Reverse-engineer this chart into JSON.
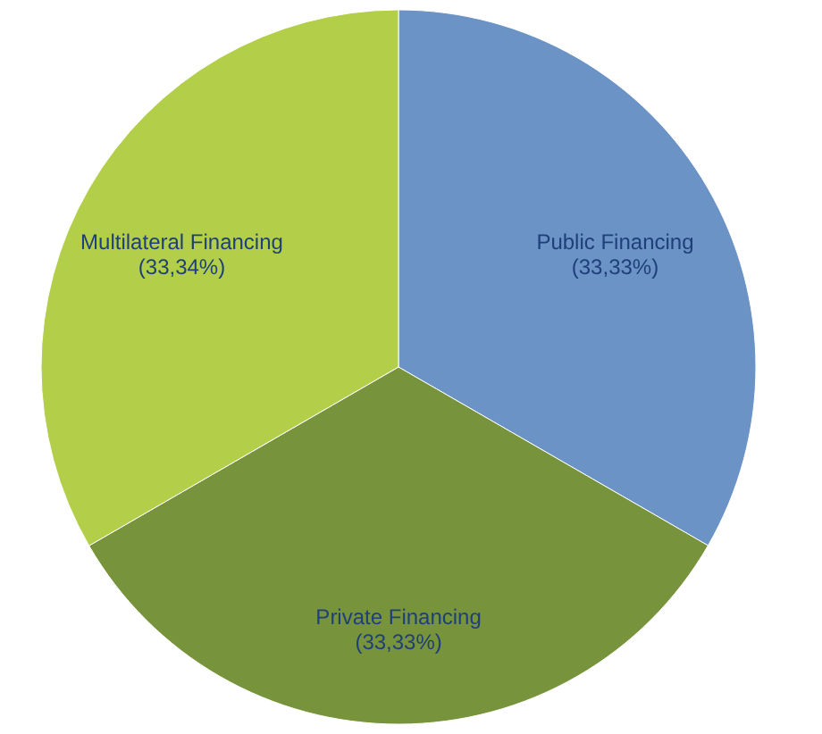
{
  "chart_data": {
    "type": "pie",
    "categories": [
      "Public Financing",
      "Private Financing",
      "Multilateral Financing"
    ],
    "values": [
      33.33,
      33.33,
      33.34
    ],
    "colors": [
      "#6b93c6",
      "#77933c",
      "#b3cf4a"
    ],
    "value_labels": [
      "(33,33%)",
      "(33,33%)",
      "(33,34%)"
    ],
    "legend": false
  }
}
